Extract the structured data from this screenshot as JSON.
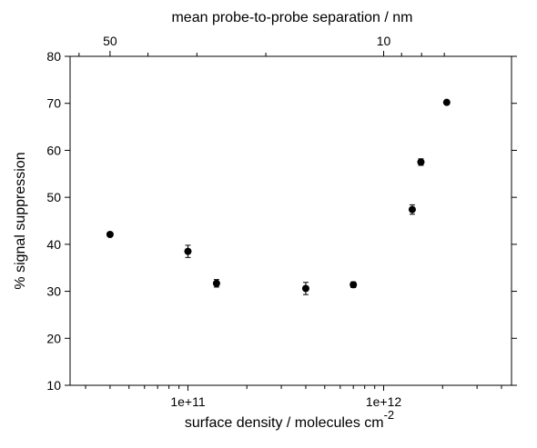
{
  "chart_data": {
    "type": "scatter",
    "title": "",
    "xlabel": "surface density  / molecules cm",
    "xlabel_superscript": "-2",
    "ylabel": "% signal suppression",
    "top_xlabel": "mean probe-to-probe separation / nm",
    "xscale": "log",
    "xlim": [
      25000000000,
      4500000000000
    ],
    "ylim": [
      10,
      80
    ],
    "yticks": [
      10,
      20,
      30,
      40,
      50,
      60,
      70,
      80
    ],
    "yticklabels": [
      "10",
      "20",
      "30",
      "40",
      "50",
      "60",
      "70",
      "80"
    ],
    "xticks_major": [
      100000000000,
      1000000000000
    ],
    "xticklabels": [
      "1e+11",
      "1e+12"
    ],
    "top_ticks_nm": [
      50,
      10
    ],
    "top_ticklabels": [
      "50",
      "10"
    ],
    "grid": false,
    "points": [
      {
        "x": 40000000000,
        "y": 42.1,
        "err": 0.4
      },
      {
        "x": 100000000000,
        "y": 38.5,
        "err": 1.3
      },
      {
        "x": 140000000000,
        "y": 31.7,
        "err": 0.8
      },
      {
        "x": 400000000000,
        "y": 30.6,
        "err": 1.3
      },
      {
        "x": 700000000000,
        "y": 31.4,
        "err": 0.6
      },
      {
        "x": 1400000000000,
        "y": 47.4,
        "err": 1.0
      },
      {
        "x": 1550000000000,
        "y": 57.5,
        "err": 0.7
      },
      {
        "x": 2100000000000,
        "y": 70.2,
        "err": 0.3
      }
    ]
  }
}
